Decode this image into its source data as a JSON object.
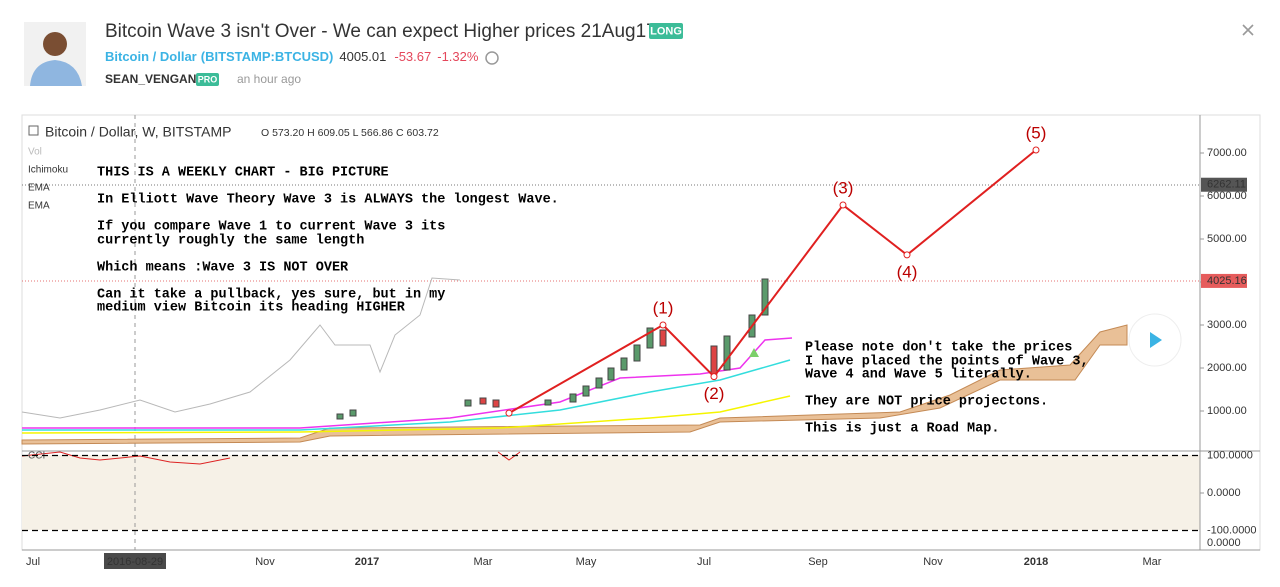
{
  "header": {
    "title": "Bitcoin Wave 3 isn't Over - We can expect Higher prices 21Aug17",
    "badge": "LONG",
    "symbol": "Bitcoin / Dollar",
    "exchange": "(BITSTAMP:BTCUSD)",
    "price": "4005.01",
    "change": "-53.67",
    "change_pct": "-1.32%",
    "author": "SEAN_VENGAN",
    "author_badge": "PRO",
    "time": "an hour ago"
  },
  "chart": {
    "legend": "Bitcoin / Dollar, W, BITSTAMP",
    "ohlc": "O 573.20 H 609.05 L 566.86 C 603.72",
    "indicators": [
      "Vol",
      "Ichimoku",
      "EMA",
      "EMA"
    ],
    "cci_label": "CCI",
    "notes_left": [
      "THIS IS A WEEKLY CHART - BIG PICTURE",
      "In Elliott Wave Theory Wave 3 is ALWAYS the longest Wave.",
      "If you compare Wave 1 to current Wave 3 its",
      "currently roughly the same length",
      "Which means :Wave 3 IS NOT OVER",
      "Can it take a pullback, yes sure, but in my",
      "medium view Bitcoin its heading HIGHER"
    ],
    "notes_right": [
      "Please note don't take the prices",
      "I have placed the points of Wave 3,",
      "Wave 4 and Wave 5 literally.",
      "They are NOT price projectons.",
      "This is just a Road Map."
    ],
    "price_ticks": [
      {
        "value": 1000,
        "label": "1000.00"
      },
      {
        "value": 2000,
        "label": "2000.00"
      },
      {
        "value": 3000,
        "label": "3000.00"
      },
      {
        "value": 4000,
        "label": "4000.00"
      },
      {
        "value": 5000,
        "label": "5000.00"
      },
      {
        "value": 6000,
        "label": "6000.00"
      },
      {
        "value": 7000,
        "label": "7000.00"
      }
    ],
    "price_tags": [
      6262.11,
      4025.16
    ],
    "cci_ticks": [
      {
        "value": 100,
        "label": "100.0000"
      },
      {
        "value": 0,
        "label": "0.0000"
      },
      {
        "value": -100,
        "label": "-100.0000"
      }
    ],
    "cci_extra": {
      "value": 0,
      "label": "0.0000"
    },
    "x_labels": [
      "Jul",
      "Nov",
      "2017",
      "Mar",
      "May",
      "Jul",
      "Sep",
      "Nov",
      "2018",
      "Mar"
    ],
    "cursor_date": "2016-08-29",
    "wave_start": 950,
    "waves": [
      {
        "label": "(1)",
        "value": 3000
      },
      {
        "label": "(2)",
        "value": 1800
      },
      {
        "label": "(3)",
        "value": 5790
      },
      {
        "label": "(4)",
        "value": 4630
      },
      {
        "label": "(5)",
        "value": 7070
      }
    ]
  }
}
